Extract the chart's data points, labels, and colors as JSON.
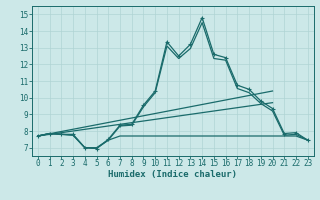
{
  "xlabel": "Humidex (Indice chaleur)",
  "bg_color": "#cce8e8",
  "line_color": "#1a6b6b",
  "grid_color": "#b0d4d4",
  "xlim": [
    -0.5,
    23.5
  ],
  "ylim": [
    6.5,
    15.5
  ],
  "xticks": [
    0,
    1,
    2,
    3,
    4,
    5,
    6,
    7,
    8,
    9,
    10,
    11,
    12,
    13,
    14,
    15,
    16,
    17,
    18,
    19,
    20,
    21,
    22,
    23
  ],
  "yticks": [
    7,
    8,
    9,
    10,
    11,
    12,
    13,
    14,
    15
  ],
  "line_wavy_x": [
    0,
    1,
    2,
    3,
    4,
    5,
    6,
    7,
    8,
    9,
    10,
    11,
    12,
    13,
    14,
    15,
    16,
    17,
    18,
    19,
    20,
    21,
    22,
    23
  ],
  "line_wavy_y": [
    7.7,
    7.85,
    7.8,
    7.8,
    7.0,
    6.95,
    7.5,
    8.35,
    8.4,
    9.55,
    10.4,
    13.35,
    12.5,
    13.2,
    14.8,
    12.6,
    12.4,
    10.75,
    10.5,
    9.8,
    9.35,
    7.85,
    7.9,
    7.45
  ],
  "line_smooth_x": [
    0,
    1,
    2,
    3,
    4,
    5,
    6,
    7,
    8,
    9,
    10,
    11,
    12,
    13,
    14,
    15,
    16,
    17,
    18,
    19,
    20,
    21,
    22,
    23
  ],
  "line_smooth_y": [
    7.7,
    7.85,
    7.8,
    7.75,
    7.0,
    7.0,
    7.45,
    8.3,
    8.35,
    9.45,
    10.3,
    13.1,
    12.35,
    12.95,
    14.5,
    12.35,
    12.25,
    10.55,
    10.3,
    9.65,
    9.2,
    7.75,
    7.8,
    7.45
  ],
  "line_trend1_x": [
    0,
    20
  ],
  "line_trend1_y": [
    7.7,
    10.4
  ],
  "line_trend2_x": [
    0,
    20
  ],
  "line_trend2_y": [
    7.7,
    9.7
  ],
  "line_flat_x": [
    0,
    1,
    2,
    3,
    4,
    5,
    6,
    7,
    8,
    9,
    10,
    11,
    12,
    13,
    14,
    15,
    16,
    17,
    18,
    19,
    20,
    21,
    22,
    23
  ],
  "line_flat_y": [
    7.7,
    7.85,
    7.8,
    7.75,
    7.0,
    6.95,
    7.45,
    7.7,
    7.7,
    7.7,
    7.7,
    7.7,
    7.7,
    7.7,
    7.7,
    7.7,
    7.7,
    7.7,
    7.7,
    7.7,
    7.7,
    7.7,
    7.7,
    7.45
  ]
}
